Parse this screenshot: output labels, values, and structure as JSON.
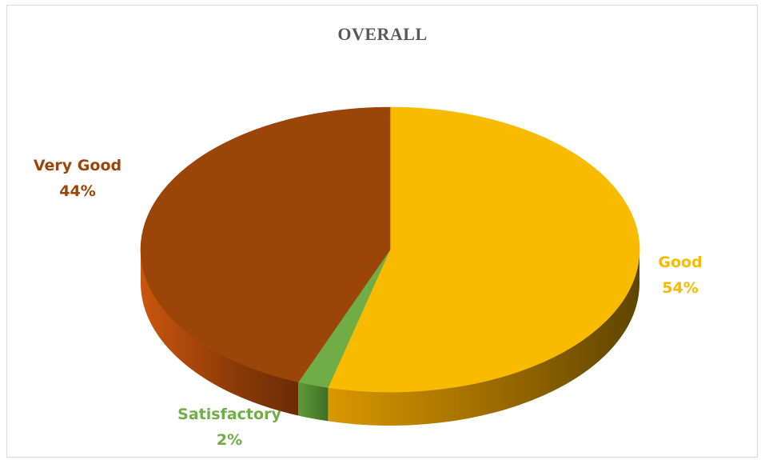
{
  "chart_data": {
    "type": "pie",
    "title": "OVERALL",
    "categories": [
      "Good",
      "Satisfactory",
      "Very Good"
    ],
    "values": [
      54,
      2,
      44
    ],
    "value_labels": [
      "54%",
      "2%",
      "44%"
    ],
    "colors": {
      "Good": "#f9bb00",
      "Satisfactory": "#70ad47",
      "Very Good": "#9c4509"
    },
    "style": "3d",
    "legend": "none"
  }
}
